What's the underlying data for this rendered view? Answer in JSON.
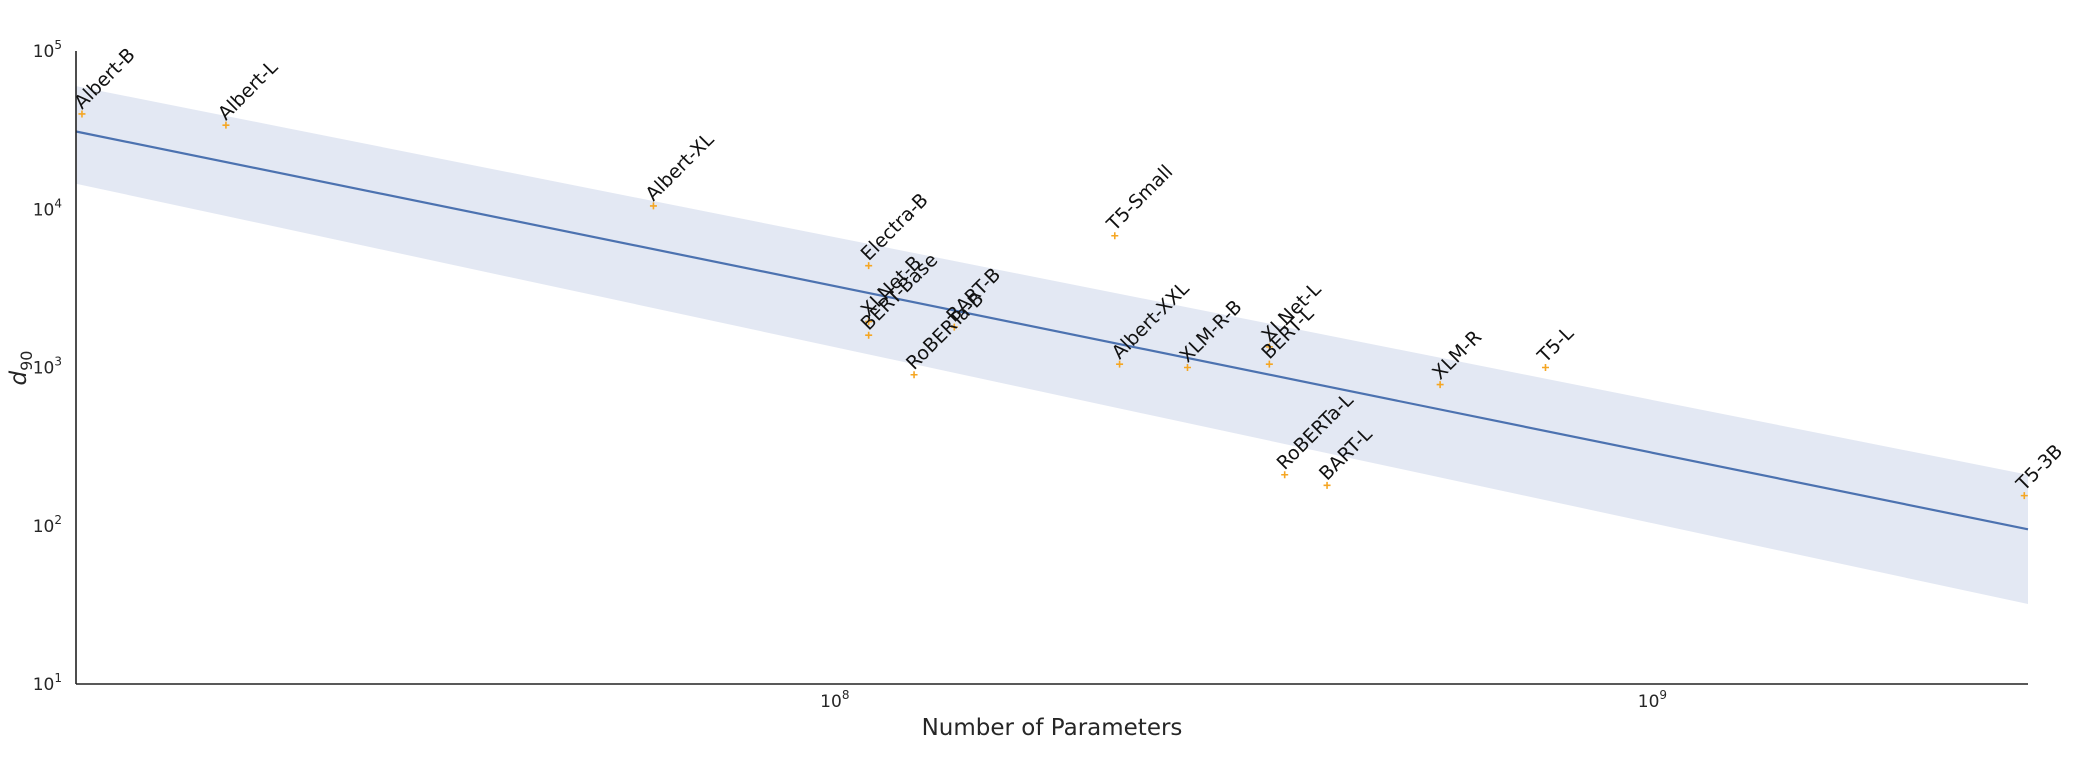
{
  "chart_data": {
    "type": "scatter",
    "title": "",
    "xlabel": "Number of Parameters",
    "ylabel": "d90",
    "xscale": "log",
    "yscale": "log",
    "xlim": [
      11800000,
      2880000000
    ],
    "ylim": [
      10,
      100000
    ],
    "grid": false,
    "legend": "none",
    "x_ticks": [
      {
        "value": 100000000,
        "base": "10",
        "exp": "8"
      },
      {
        "value": 1000000000,
        "base": "10",
        "exp": "9"
      }
    ],
    "y_ticks": [
      {
        "value": 10,
        "base": "10",
        "exp": "1"
      },
      {
        "value": 100,
        "base": "10",
        "exp": "2"
      },
      {
        "value": 1000,
        "base": "10",
        "exp": "3"
      },
      {
        "value": 10000,
        "base": "10",
        "exp": "4"
      },
      {
        "value": 100000,
        "base": "10",
        "exp": "5"
      }
    ],
    "points": [
      {
        "label": "Albert-B",
        "x": 12000000,
        "y": 40000
      },
      {
        "label": "Albert-L",
        "x": 18000000,
        "y": 34000
      },
      {
        "label": "Albert-XL",
        "x": 60000000,
        "y": 10500
      },
      {
        "label": "Electra-B",
        "x": 110000000,
        "y": 4400
      },
      {
        "label": "XLNet-B",
        "x": 110000000,
        "y": 1950
      },
      {
        "label": "BERT-Base",
        "x": 110000000,
        "y": 1600
      },
      {
        "label": "RoBERTa-B",
        "x": 125000000,
        "y": 900
      },
      {
        "label": "BART-B",
        "x": 140000000,
        "y": 1800
      },
      {
        "label": "T5-Small",
        "x": 220000000,
        "y": 6800
      },
      {
        "label": "Albert-XXL",
        "x": 223000000,
        "y": 1050
      },
      {
        "label": "XLM-R-B",
        "x": 270000000,
        "y": 1000
      },
      {
        "label": "XLNet-L",
        "x": 340000000,
        "y": 1350
      },
      {
        "label": "BERT-L",
        "x": 340000000,
        "y": 1050
      },
      {
        "label": "RoBERTa-L",
        "x": 355000000,
        "y": 210
      },
      {
        "label": "BART-L",
        "x": 400000000,
        "y": 180
      },
      {
        "label": "XLM-R",
        "x": 550000000,
        "y": 780
      },
      {
        "label": "T5-L",
        "x": 740000000,
        "y": 1000
      },
      {
        "label": "T5-3B",
        "x": 2850000000,
        "y": 155
      }
    ],
    "fit_line": {
      "x": [
        11800000,
        2880000000
      ],
      "y": [
        31000,
        95
      ]
    },
    "confidence_band": {
      "x": [
        11800000,
        2880000000
      ],
      "upper": [
        60000,
        210
      ],
      "lower": [
        14500,
        32
      ]
    },
    "colors": {
      "fit_line": "#4c72b0",
      "band": "#e3e8f3",
      "markers": "#f5a623",
      "axis": "#222222"
    }
  }
}
